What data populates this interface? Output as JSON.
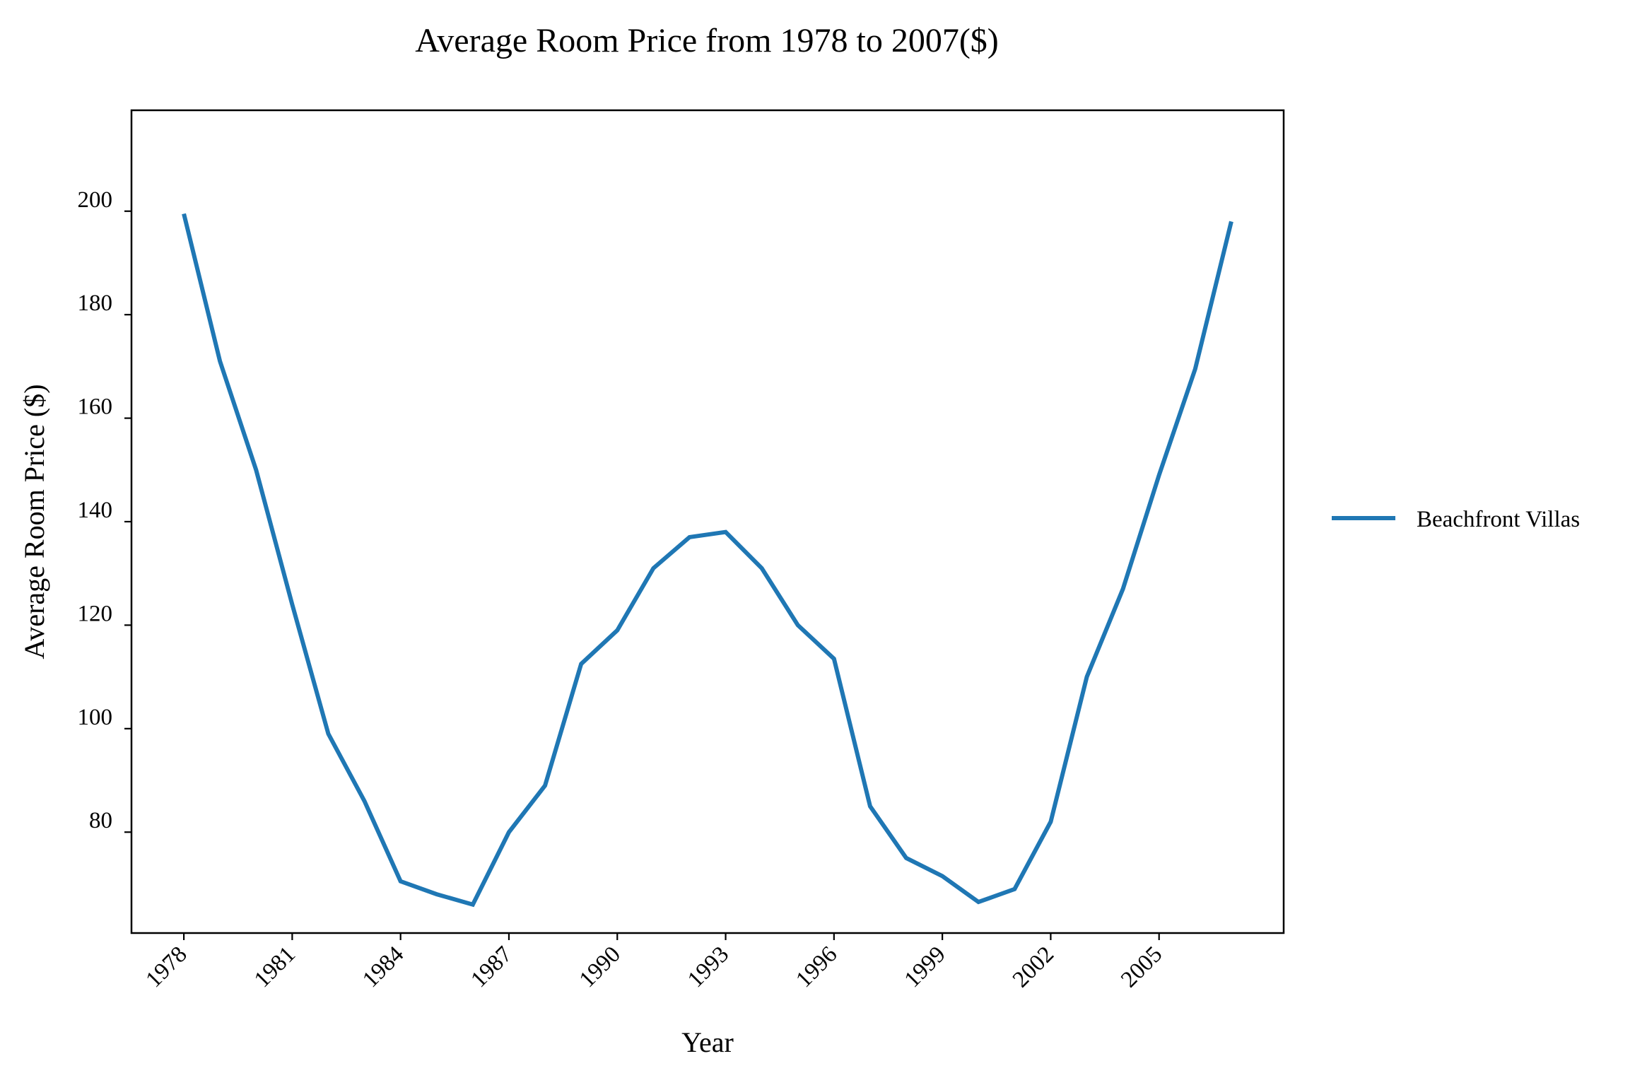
{
  "chart_data": {
    "type": "line",
    "title": "Average Room Price from 1978 to 2007($)",
    "xlabel": "Year",
    "ylabel": "Average Room Price ($)",
    "x": [
      1978,
      1979,
      1980,
      1981,
      1982,
      1983,
      1984,
      1985,
      1986,
      1987,
      1988,
      1989,
      1990,
      1991,
      1992,
      1993,
      1994,
      1995,
      1996,
      1997,
      1998,
      1999,
      2000,
      2001,
      2002,
      2003,
      2004,
      2005,
      2006,
      2007
    ],
    "xticks": [
      "1978",
      "1981",
      "1984",
      "1987",
      "1990",
      "1993",
      "1996",
      "1999",
      "2002",
      "2005"
    ],
    "yticks": [
      "80",
      "100",
      "120",
      "140",
      "160",
      "180",
      "200"
    ],
    "xlim": [
      1976.55,
      2008.45
    ],
    "ylim": [
      60.5,
      219.5
    ],
    "grid": false,
    "legend_position": "right",
    "series": [
      {
        "name": "Beachfront Villas",
        "color": "#1f77b4",
        "values": [
          199.5,
          171,
          150,
          124,
          99,
          86,
          70.5,
          68,
          66,
          80,
          89,
          112.5,
          119,
          131,
          137,
          138,
          131,
          120,
          113.5,
          85,
          75,
          71.5,
          66.5,
          69,
          82,
          110,
          127,
          149,
          169.5,
          198
        ]
      }
    ]
  }
}
